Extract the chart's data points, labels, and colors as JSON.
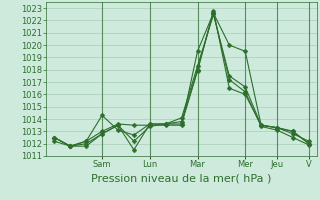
{
  "background_color": "#ceeadc",
  "grid_color": "#a8cdb8",
  "line_color": "#2d6e2d",
  "marker_color": "#2d6e2d",
  "ylim": [
    1011,
    1023.5
  ],
  "yticks": [
    1011,
    1012,
    1013,
    1014,
    1015,
    1016,
    1017,
    1018,
    1019,
    1020,
    1021,
    1022,
    1023
  ],
  "xlabel": "Pression niveau de la mer( hPa )",
  "day_labels": [
    "Sam",
    "Lun",
    "Mar",
    "Mer",
    "Jeu",
    "V"
  ],
  "day_positions": [
    3,
    6,
    9,
    12,
    14,
    16
  ],
  "n_points": 17,
  "series": [
    [
      1012.5,
      1011.8,
      1012.2,
      1013.0,
      1013.6,
      1013.5,
      1013.5,
      1013.5,
      1013.5,
      1019.5,
      1022.6,
      1020.0,
      1019.5,
      1013.5,
      1013.3,
      1013.0,
      1012.0
    ],
    [
      1012.5,
      1011.8,
      1012.2,
      1014.3,
      1013.1,
      1012.7,
      1013.6,
      1013.6,
      1013.6,
      1017.9,
      1022.8,
      1016.5,
      1016.0,
      1013.5,
      1013.3,
      1013.0,
      1012.0
    ],
    [
      1012.5,
      1011.8,
      1011.8,
      1012.8,
      1013.5,
      1011.5,
      1013.6,
      1013.6,
      1014.1,
      1018.3,
      1022.5,
      1017.5,
      1016.6,
      1013.5,
      1013.3,
      1012.8,
      1012.2
    ],
    [
      1012.2,
      1011.8,
      1012.0,
      1012.8,
      1013.5,
      1012.2,
      1013.4,
      1013.6,
      1013.8,
      1018.0,
      1022.6,
      1017.2,
      1016.2,
      1013.4,
      1013.1,
      1012.5,
      1011.9
    ]
  ],
  "xlabel_fontsize": 8,
  "tick_fontsize": 6,
  "tick_color": "#2d6e2d",
  "spine_color": "#2d6e2d",
  "linewidth": 0.8,
  "markersize": 2.5
}
